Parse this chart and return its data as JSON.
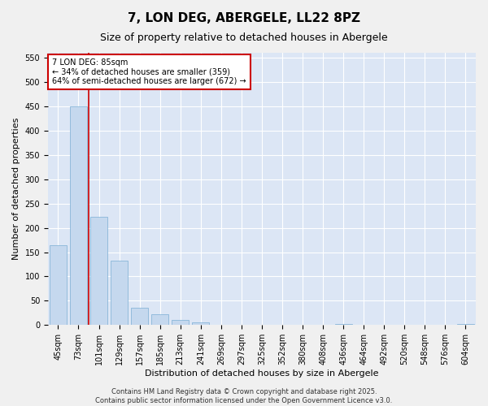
{
  "title": "7, LON DEG, ABERGELE, LL22 8PZ",
  "subtitle": "Size of property relative to detached houses in Abergele",
  "xlabel": "Distribution of detached houses by size in Abergele",
  "ylabel": "Number of detached properties",
  "categories": [
    "45sqm",
    "73sqm",
    "101sqm",
    "129sqm",
    "157sqm",
    "185sqm",
    "213sqm",
    "241sqm",
    "269sqm",
    "297sqm",
    "325sqm",
    "352sqm",
    "380sqm",
    "408sqm",
    "436sqm",
    "464sqm",
    "492sqm",
    "520sqm",
    "548sqm",
    "576sqm",
    "604sqm"
  ],
  "values": [
    165,
    450,
    223,
    133,
    35,
    23,
    10,
    5,
    1,
    0,
    0,
    0,
    0,
    0,
    3,
    0,
    0,
    0,
    0,
    0,
    3
  ],
  "bar_color": "#c5d8ee",
  "bar_edgecolor": "#7aaed4",
  "vline_x": 1.5,
  "annotation_text": "7 LON DEG: 85sqm\n← 34% of detached houses are smaller (359)\n64% of semi-detached houses are larger (672) →",
  "annotation_box_color": "#ffffff",
  "annotation_box_edgecolor": "#cc0000",
  "vline_color": "#cc0000",
  "ylim": [
    0,
    560
  ],
  "yticks": [
    0,
    50,
    100,
    150,
    200,
    250,
    300,
    350,
    400,
    450,
    500,
    550
  ],
  "background_color": "#dce6f5",
  "grid_color": "#ffffff",
  "fig_background": "#f0f0f0",
  "footer_text": "Contains HM Land Registry data © Crown copyright and database right 2025.\nContains public sector information licensed under the Open Government Licence v3.0.",
  "title_fontsize": 11,
  "subtitle_fontsize": 9,
  "axis_label_fontsize": 8,
  "tick_fontsize": 7,
  "annotation_fontsize": 7,
  "footer_fontsize": 6
}
